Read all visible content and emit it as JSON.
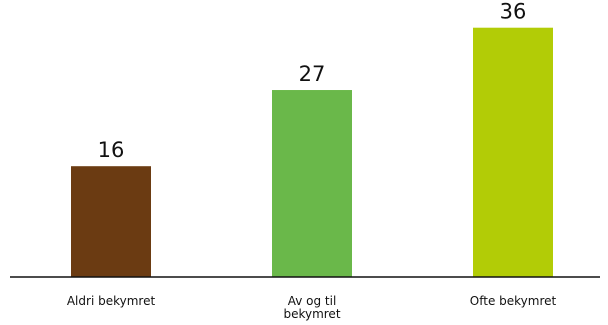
{
  "chart_data": {
    "type": "bar",
    "title": "",
    "xlabel": "",
    "ylabel": "",
    "categories": [
      [
        "Aldri bekymret"
      ],
      [
        "Av og til",
        "bekymret"
      ],
      [
        "Ofte bekymret"
      ]
    ],
    "values": [
      16,
      27,
      36
    ],
    "colors": [
      "#6b3b12",
      "#6ab84a",
      "#b2cc06"
    ],
    "axis_color": "#111111",
    "ylim": [
      0,
      40
    ],
    "grid": false,
    "legend": "none"
  }
}
